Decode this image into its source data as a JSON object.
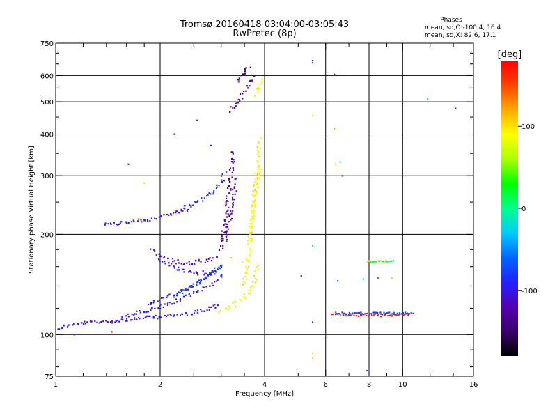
{
  "chart_data": {
    "type": "scatter",
    "title": "Tromsø 20160418 03:04:00-03:05:43",
    "subtitle": "RwPretec (8p)",
    "xlabel": "Frequency [MHz]",
    "ylabel": "Stationary phase Virtual Height [km]",
    "x_scale": "log",
    "y_scale": "log",
    "xlim": [
      1,
      16
    ],
    "ylim": [
      75,
      750
    ],
    "x_ticks": [
      1,
      2,
      4,
      6,
      8,
      10,
      16
    ],
    "x_tick_labels": [
      "1",
      "2",
      "4",
      "6",
      "8",
      "10",
      "16"
    ],
    "x_minor_ticks": [
      1.2,
      1.4,
      1.6,
      1.8,
      2.5,
      3,
      3.5,
      5,
      7,
      9,
      12,
      14
    ],
    "y_ticks": [
      75,
      100,
      200,
      300,
      400,
      500,
      600,
      750
    ],
    "y_tick_labels": [
      "75",
      "100",
      "200",
      "300",
      "400",
      "500",
      "600",
      "750"
    ],
    "y_minor_ticks": [
      80,
      90,
      120,
      140,
      160,
      180,
      250,
      350,
      450,
      550,
      650,
      700
    ],
    "grid": true,
    "grid_x": [
      2,
      4,
      6,
      8,
      10
    ],
    "grid_y": [
      100,
      200,
      300,
      400,
      500,
      600
    ],
    "stats": {
      "header": "Phases",
      "line_o": "mean, sd,O:-100.4, 16.4",
      "line_x": "mean, sd,X:  82.6, 17.1"
    },
    "colorbar": {
      "label": "[deg]",
      "range": [
        -180,
        180
      ],
      "ticks": [
        -100,
        0,
        100
      ],
      "tick_labels": [
        "-100",
        "0",
        "100"
      ],
      "colors": [
        "#000000",
        "#3a006a",
        "#5500b0",
        "#2222ff",
        "#0066ff",
        "#00ccff",
        "#00ff88",
        "#00ff00",
        "#aaff00",
        "#ffff00",
        "#ffaa00",
        "#ff4400",
        "#ff0000"
      ]
    },
    "series": [
      {
        "traces": [
          {
            "f": [
              1.0,
              1.06,
              1.12,
              1.18,
              1.25,
              1.35,
              1.48,
              1.62,
              1.78,
              1.95,
              2.15,
              2.35,
              2.55,
              2.72,
              2.85,
              2.93,
              2.98
            ],
            "h": [
              104,
              106,
              107,
              108,
              109,
              109,
              110,
              111,
              112,
              113,
              114,
              115,
              117,
              119,
              121,
              123,
              125
            ],
            "p": -105,
            "spread": 2.5
          },
          {
            "f": [
              1.55,
              1.7,
              1.85,
              2.0,
              2.15,
              2.3,
              2.45,
              2.6,
              2.75,
              2.88,
              2.98,
              3.05
            ],
            "h": [
              113,
              116,
              118,
              121,
              124,
              128,
              132,
              136,
              140,
              144,
              148,
              152
            ],
            "p": -100,
            "spread": 2.5
          },
          {
            "f": [
              1.85,
              2.0,
              2.15,
              2.3,
              2.45,
              2.6,
              2.75,
              2.9,
              3.0
            ],
            "h": [
              124,
              128,
              131,
              135,
              139,
              144,
              150,
              156,
              162
            ],
            "p": -95,
            "spread": 2.5
          },
          {
            "f": [
              2.2,
              2.35,
              2.5,
              2.65,
              2.8,
              2.92,
              3.02
            ],
            "h": [
              131,
              136,
              141,
              147,
              153,
              158,
              164
            ],
            "p": -75,
            "spread": 2.5
          },
          {
            "f": [
              1.9,
              2.05,
              2.2,
              2.35,
              2.5,
              2.65,
              2.8,
              2.95
            ],
            "h": [
              178,
              171,
              166,
              164,
              164,
              166,
              168,
              172
            ],
            "p": -105,
            "spread": 3
          },
          {
            "f": [
              2.0,
              2.2,
              2.4,
              2.6,
              2.8,
              2.95
            ],
            "h": [
              168,
              159,
              155,
              153,
              154,
              156
            ],
            "p": -98,
            "spread": 3
          },
          {
            "f": [
              1.38,
              1.5,
              1.62,
              1.75,
              1.88,
              2.0,
              2.15,
              2.3,
              2.45
            ],
            "h": [
              216,
              215,
              217,
              220,
              222,
              226,
              231,
              235,
              239
            ],
            "p": -100,
            "spread": 2.5
          },
          {
            "f": [
              2.3,
              2.45,
              2.6,
              2.72,
              2.82,
              2.9,
              2.97,
              3.02,
              3.06,
              3.1
            ],
            "h": [
              240,
              246,
              253,
              260,
              268,
              276,
              284,
              292,
              300,
              308
            ],
            "p": -85,
            "spread": 3
          },
          {
            "f": [
              3.0,
              3.05,
              3.08,
              3.12,
              3.15,
              3.18,
              3.22,
              3.25
            ],
            "h": [
              180,
              200,
              220,
              240,
              265,
              290,
              320,
              360
            ],
            "p": -130,
            "spread": 3
          },
          {
            "f": [
              3.1,
              3.15,
              3.2,
              3.25,
              3.3,
              3.35
            ],
            "h": [
              190,
              210,
              235,
              260,
              285,
              300
            ],
            "p": -125,
            "spread": 3
          },
          {
            "f": [
              3.15,
              3.25,
              3.35,
              3.45,
              3.55,
              3.65,
              3.7
            ],
            "h": [
              470,
              485,
              500,
              520,
              545,
              575,
              600
            ],
            "p": -130,
            "spread": 3
          },
          {
            "f": [
              3.35,
              3.45,
              3.55,
              3.65
            ],
            "h": [
              570,
              600,
              620,
              640
            ],
            "p": -140,
            "spread": 3
          },
          {
            "f": [
              2.98,
              3.05,
              3.15,
              3.3,
              3.45,
              3.58,
              3.68,
              3.75,
              3.8,
              3.85
            ],
            "h": [
              118,
              119,
              121,
              124,
              128,
              134,
              140,
              148,
              155,
              165
            ],
            "p": 80,
            "spread": 3
          },
          {
            "f": [
              3.5,
              3.55,
              3.6,
              3.65,
              3.7,
              3.75,
              3.82,
              3.88
            ],
            "h": [
              140,
              160,
              180,
              205,
              230,
              260,
              290,
              320
            ],
            "p": 90,
            "spread": 3
          },
          {
            "f": [
              3.62,
              3.68,
              3.72,
              3.76,
              3.8,
              3.84,
              3.88
            ],
            "h": [
              190,
              220,
              250,
              280,
              310,
              350,
              390
            ],
            "p": 95,
            "spread": 3
          },
          {
            "f": [
              3.75,
              3.8,
              3.85,
              3.9,
              3.95
            ],
            "h": [
              520,
              540,
              560,
              580,
              600
            ],
            "p": 85,
            "spread": 3
          },
          {
            "f": [
              6.25,
              6.55,
              6.85,
              7.15,
              7.45,
              7.75,
              8.05,
              8.35,
              8.65,
              8.95,
              9.25,
              9.55,
              9.85,
              10.2,
              10.6
            ],
            "h": [
              115,
              115,
              114,
              115,
              114,
              115,
              114,
              115,
              114,
              115,
              114,
              115,
              115,
              115,
              115
            ],
            "p": 170,
            "spread": 1.2
          },
          {
            "f": [
              6.4,
              6.75,
              7.1,
              7.5,
              7.9,
              8.3,
              8.7,
              9.1,
              9.5,
              9.9,
              10.3,
              10.8
            ],
            "h": [
              116,
              116,
              116,
              116,
              116,
              116,
              116,
              116,
              116,
              116,
              116,
              116
            ],
            "p": -80,
            "spread": 1.2
          },
          {
            "f": [
              7.9,
              8.1,
              8.3,
              8.5,
              8.7,
              8.9,
              9.1,
              9.3
            ],
            "h": [
              166,
              166,
              166,
              166,
              166,
              166,
              166,
              166
            ],
            "p": 80,
            "spread": 1
          },
          {
            "f": [
              8.1,
              8.3,
              8.5,
              8.7,
              8.9,
              9.1,
              9.3,
              9.5
            ],
            "h": [
              166,
              166,
              166,
              166,
              166,
              166,
              166,
              166
            ],
            "p": 0,
            "spread": 1
          }
        ]
      },
      {
        "points": [
          {
            "f": 5.5,
            "h": 665,
            "p": -100
          },
          {
            "f": 5.5,
            "h": 655,
            "p": -60
          },
          {
            "f": 6.35,
            "h": 605,
            "p": -80
          },
          {
            "f": 11.8,
            "h": 510,
            "p": -10
          },
          {
            "f": 14.2,
            "h": 478,
            "p": -100
          },
          {
            "f": 5.5,
            "h": 455,
            "p": 95
          },
          {
            "f": 6.35,
            "h": 415,
            "p": 120
          },
          {
            "f": 6.4,
            "h": 325,
            "p": 80
          },
          {
            "f": 6.6,
            "h": 330,
            "p": 0
          },
          {
            "f": 6.7,
            "h": 300,
            "p": -80
          },
          {
            "f": 1.62,
            "h": 325,
            "p": -100
          },
          {
            "f": 2.55,
            "h": 440,
            "p": -100
          },
          {
            "f": 2.2,
            "h": 400,
            "p": -110
          },
          {
            "f": 2.8,
            "h": 370,
            "p": -90
          },
          {
            "f": 1.8,
            "h": 285,
            "p": 100
          },
          {
            "f": 5.5,
            "h": 185,
            "p": 20
          },
          {
            "f": 5.1,
            "h": 150,
            "p": -110
          },
          {
            "f": 5.5,
            "h": 109,
            "p": -90
          },
          {
            "f": 5.5,
            "h": 88,
            "p": 100
          },
          {
            "f": 5.5,
            "h": 85,
            "p": 100
          },
          {
            "f": 7.9,
            "h": 78,
            "p": -100
          },
          {
            "f": 6.5,
            "h": 145,
            "p": -60
          },
          {
            "f": 7.7,
            "h": 147,
            "p": -20
          },
          {
            "f": 8.5,
            "h": 148,
            "p": 150
          },
          {
            "f": 9.3,
            "h": 148,
            "p": 60
          },
          {
            "f": 1.13,
            "h": 100,
            "p": -90
          },
          {
            "f": 1.45,
            "h": 102,
            "p": 180
          },
          {
            "f": 1.0,
            "h": 101,
            "p": -100
          },
          {
            "f": 3.45,
            "h": 165,
            "p": 100
          },
          {
            "f": 3.2,
            "h": 170,
            "p": 110
          }
        ]
      }
    ]
  }
}
